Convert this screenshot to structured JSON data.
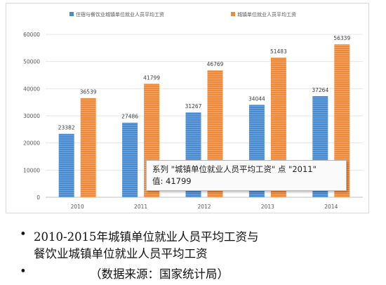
{
  "chart_data": {
    "type": "bar",
    "categories": [
      "2010",
      "2011",
      "2012",
      "2013",
      "2014"
    ],
    "series": [
      {
        "name": "住宿与餐饮业城镇单位就业人员平均工资",
        "values": [
          23382,
          27486,
          31267,
          34044,
          37264
        ],
        "color": "#4a8bd0"
      },
      {
        "name": "城镇单位就业人员平均工资",
        "values": [
          36539,
          41799,
          46769,
          51483,
          56339
        ],
        "color": "#f0883a"
      }
    ],
    "ylim": [
      0,
      60000
    ],
    "yticks": [
      0,
      10000,
      20000,
      30000,
      40000,
      50000,
      60000
    ],
    "grid": true,
    "legend": "top",
    "title": "",
    "xlabel": "",
    "ylabel": ""
  },
  "tooltip": {
    "line1": "系列 \"城镇单位就业人员平均工资\" 点 \"2011\"",
    "line2": "值: 41799"
  },
  "caption": {
    "bullet": "•",
    "line1": "2010-2015年城镇单位就业人员平均工资与",
    "line2": "餐饮业城镇单位就业人员平均工资",
    "line3": "（数据来源：国家统计局）"
  }
}
